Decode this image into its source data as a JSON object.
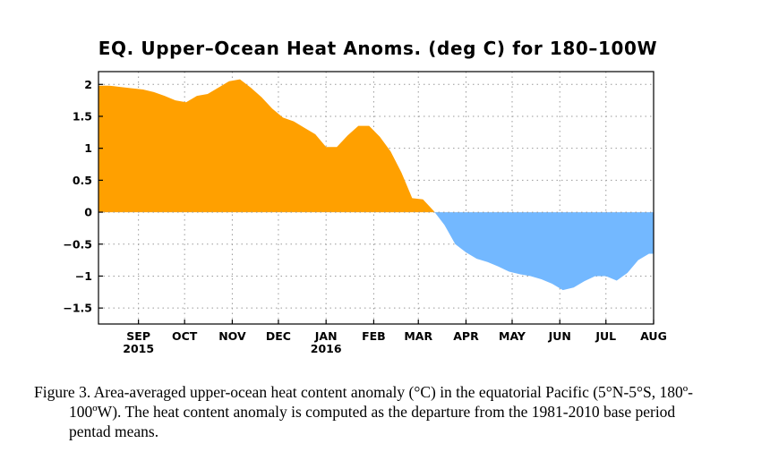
{
  "chart_data": {
    "type": "area",
    "title": "EQ. Upper–Ocean Heat Anoms. (deg C) for 180–100W",
    "xlabel": "",
    "ylabel": "",
    "ylim": [
      -1.75,
      2.2
    ],
    "yticks": [
      2,
      1.5,
      1,
      0.5,
      0,
      -0.5,
      -1,
      -1.5
    ],
    "ytick_labels": [
      "2",
      "1.5",
      "1",
      "0.5",
      "0",
      "−0.5",
      "−1",
      "−1.5"
    ],
    "xlim": [
      "2015-08-06",
      "2016-08-01"
    ],
    "xticks": [
      {
        "date": "2015-09-01",
        "label": "SEP",
        "year": "2015"
      },
      {
        "date": "2015-10-01",
        "label": "OCT",
        "year": ""
      },
      {
        "date": "2015-11-01",
        "label": "NOV",
        "year": ""
      },
      {
        "date": "2015-12-01",
        "label": "DEC",
        "year": ""
      },
      {
        "date": "2016-01-01",
        "label": "JAN",
        "year": "2016"
      },
      {
        "date": "2016-02-01",
        "label": "FEB",
        "year": ""
      },
      {
        "date": "2016-03-01",
        "label": "MAR",
        "year": ""
      },
      {
        "date": "2016-04-01",
        "label": "APR",
        "year": ""
      },
      {
        "date": "2016-05-01",
        "label": "MAY",
        "year": ""
      },
      {
        "date": "2016-06-01",
        "label": "JUN",
        "year": ""
      },
      {
        "date": "2016-07-01",
        "label": "JUL",
        "year": ""
      },
      {
        "date": "2016-08-01",
        "label": "AUG",
        "year": ""
      }
    ],
    "grid": true,
    "positive_color": "#ffa000",
    "negative_color": "#73b8ff",
    "x": [
      "2015-08-06",
      "2015-08-13",
      "2015-08-20",
      "2015-08-27",
      "2015-09-04",
      "2015-09-11",
      "2015-09-18",
      "2015-09-25",
      "2015-10-02",
      "2015-10-09",
      "2015-10-16",
      "2015-10-23",
      "2015-10-30",
      "2015-11-06",
      "2015-11-13",
      "2015-11-20",
      "2015-11-27",
      "2015-12-04",
      "2015-12-11",
      "2015-12-18",
      "2015-12-25",
      "2016-01-01",
      "2016-01-08",
      "2016-01-15",
      "2016-01-22",
      "2016-01-29",
      "2016-02-05",
      "2016-02-12",
      "2016-02-19",
      "2016-02-26",
      "2016-03-04",
      "2016-03-11",
      "2016-03-18",
      "2016-03-25",
      "2016-04-01",
      "2016-04-08",
      "2016-04-15",
      "2016-04-22",
      "2016-04-29",
      "2016-05-06",
      "2016-05-13",
      "2016-05-20",
      "2016-05-27",
      "2016-06-03",
      "2016-06-10",
      "2016-06-17",
      "2016-06-24",
      "2016-07-01",
      "2016-07-08",
      "2016-07-15",
      "2016-07-22",
      "2016-07-29",
      "2016-08-01"
    ],
    "values": [
      1.98,
      1.98,
      1.96,
      1.94,
      1.92,
      1.88,
      1.82,
      1.75,
      1.72,
      1.82,
      1.85,
      1.95,
      2.05,
      2.08,
      1.95,
      1.8,
      1.62,
      1.48,
      1.42,
      1.32,
      1.22,
      1.02,
      1.02,
      1.2,
      1.35,
      1.35,
      1.18,
      0.95,
      0.62,
      0.22,
      0.2,
      0.02,
      -0.2,
      -0.5,
      -0.63,
      -0.73,
      -0.78,
      -0.85,
      -0.93,
      -0.97,
      -1.0,
      -1.05,
      -1.12,
      -1.22,
      -1.18,
      -1.08,
      -1.0,
      -1.0,
      -1.07,
      -0.95,
      -0.75,
      -0.65,
      -0.65
    ]
  },
  "caption": {
    "line1": "Figure 3. Area-averaged upper-ocean heat content anomaly (°C) in the equatorial Pacific (5°N-5°S, 180º-",
    "line2": "100ºW). The heat content anomaly is computed as the departure from the 1981-2010 base period",
    "line3": "pentad means."
  }
}
